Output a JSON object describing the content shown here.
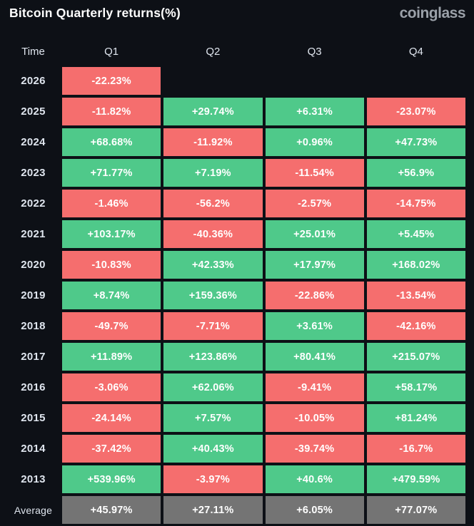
{
  "header": {
    "title": "Bitcoin Quarterly returns(%)",
    "logo_text": "coinglass"
  },
  "colors": {
    "background": "#0d1016",
    "positive": "#4fc98a",
    "negative": "#f56e6e",
    "average": "#747474",
    "cell_text": "#ffffff",
    "label_text": "#dfe5ee",
    "logo_text": "#9ba1a9"
  },
  "table": {
    "columns": [
      "Time",
      "Q1",
      "Q2",
      "Q3",
      "Q4"
    ],
    "rows": [
      {
        "time": "2026",
        "values": [
          "-22.23%",
          null,
          null,
          null
        ],
        "is_average": false
      },
      {
        "time": "2025",
        "values": [
          "-11.82%",
          "+29.74%",
          "+6.31%",
          "-23.07%"
        ],
        "is_average": false
      },
      {
        "time": "2024",
        "values": [
          "+68.68%",
          "-11.92%",
          "+0.96%",
          "+47.73%"
        ],
        "is_average": false
      },
      {
        "time": "2023",
        "values": [
          "+71.77%",
          "+7.19%",
          "-11.54%",
          "+56.9%"
        ],
        "is_average": false
      },
      {
        "time": "2022",
        "values": [
          "-1.46%",
          "-56.2%",
          "-2.57%",
          "-14.75%"
        ],
        "is_average": false
      },
      {
        "time": "2021",
        "values": [
          "+103.17%",
          "-40.36%",
          "+25.01%",
          "+5.45%"
        ],
        "is_average": false
      },
      {
        "time": "2020",
        "values": [
          "-10.83%",
          "+42.33%",
          "+17.97%",
          "+168.02%"
        ],
        "is_average": false
      },
      {
        "time": "2019",
        "values": [
          "+8.74%",
          "+159.36%",
          "-22.86%",
          "-13.54%"
        ],
        "is_average": false
      },
      {
        "time": "2018",
        "values": [
          "-49.7%",
          "-7.71%",
          "+3.61%",
          "-42.16%"
        ],
        "is_average": false
      },
      {
        "time": "2017",
        "values": [
          "+11.89%",
          "+123.86%",
          "+80.41%",
          "+215.07%"
        ],
        "is_average": false
      },
      {
        "time": "2016",
        "values": [
          "-3.06%",
          "+62.06%",
          "-9.41%",
          "+58.17%"
        ],
        "is_average": false
      },
      {
        "time": "2015",
        "values": [
          "-24.14%",
          "+7.57%",
          "-10.05%",
          "+81.24%"
        ],
        "is_average": false
      },
      {
        "time": "2014",
        "values": [
          "-37.42%",
          "+40.43%",
          "-39.74%",
          "-16.7%"
        ],
        "is_average": false
      },
      {
        "time": "2013",
        "values": [
          "+539.96%",
          "-3.97%",
          "+40.6%",
          "+479.59%"
        ],
        "is_average": false
      },
      {
        "time": "Average",
        "values": [
          "+45.97%",
          "+27.11%",
          "+6.05%",
          "+77.07%"
        ],
        "is_average": true
      }
    ]
  },
  "chart_data": {
    "type": "heatmap",
    "title": "Bitcoin Quarterly returns(%)",
    "columns": [
      "Q1",
      "Q2",
      "Q3",
      "Q4"
    ],
    "rows": [
      "2026",
      "2025",
      "2024",
      "2023",
      "2022",
      "2021",
      "2020",
      "2019",
      "2018",
      "2017",
      "2016",
      "2015",
      "2014",
      "2013",
      "Average"
    ],
    "values": [
      [
        -22.23,
        null,
        null,
        null
      ],
      [
        -11.82,
        29.74,
        6.31,
        -23.07
      ],
      [
        68.68,
        -11.92,
        0.96,
        47.73
      ],
      [
        71.77,
        7.19,
        -11.54,
        56.9
      ],
      [
        -1.46,
        -56.2,
        -2.57,
        -14.75
      ],
      [
        103.17,
        -40.36,
        25.01,
        5.45
      ],
      [
        -10.83,
        42.33,
        17.97,
        168.02
      ],
      [
        8.74,
        159.36,
        -22.86,
        -13.54
      ],
      [
        -49.7,
        -7.71,
        3.61,
        -42.16
      ],
      [
        11.89,
        123.86,
        80.41,
        215.07
      ],
      [
        -3.06,
        62.06,
        -9.41,
        58.17
      ],
      [
        -24.14,
        7.57,
        -10.05,
        81.24
      ],
      [
        -37.42,
        40.43,
        -39.74,
        -16.7
      ],
      [
        539.96,
        -3.97,
        40.6,
        479.59
      ],
      [
        45.97,
        27.11,
        6.05,
        77.07
      ]
    ],
    "unit": "%",
    "color_coding": "positive=green, negative=red, average-row=gray",
    "legend_position": "none",
    "grid": false
  }
}
